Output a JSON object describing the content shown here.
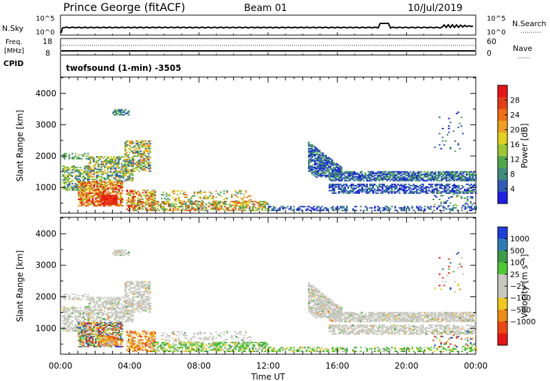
{
  "header": {
    "station": "Prince George (fitACF)",
    "beam": "Beam 01",
    "date": "10/Jul/2019"
  },
  "sky_panel": {
    "left_label": "N.Sky",
    "right_label": "N.Search",
    "left_ticks": [
      "10^5",
      "10^0"
    ],
    "right_ticks": [
      "10^5",
      "10^0"
    ]
  },
  "freq_panel": {
    "left_label_1": "Freq.",
    "left_label_2": "[MHz]",
    "right_label": "Nave",
    "left_ticks": [
      "18",
      "8"
    ],
    "right_ticks": [
      "60",
      "0"
    ]
  },
  "cpid": {
    "label": "CPID",
    "text": "twofsound (1-min) -3505"
  },
  "colors": {
    "power_scale": [
      "#1e1ee6",
      "#2f5cb4",
      "#3f8c7c",
      "#4fa84a",
      "#9bc832",
      "#e1d21e",
      "#f0a01e",
      "#f06e14",
      "#e63c14",
      "#e61414"
    ],
    "velocity_scale": [
      "#e61414",
      "#f04614",
      "#f08c14",
      "#f0c81e",
      "#c8c8c0",
      "#c8c8c0",
      "#50c832",
      "#3c9c46",
      "#2f7cb4",
      "#1e3cdc"
    ]
  },
  "chart_data": [
    {
      "type": "heatmap",
      "name": "power",
      "ylabel": "Slant Range [km]",
      "y_ticks": [
        "1000",
        "2000",
        "3000",
        "4000"
      ],
      "ylim": [
        200,
        4500
      ],
      "xlim_hours": [
        0,
        24
      ],
      "colorbar_label": "Power [dB]",
      "colorbar_ticks": [
        "4",
        "8",
        "12",
        "16",
        "20",
        "24",
        "28"
      ],
      "colorbar_range": [
        0,
        32
      ]
    },
    {
      "type": "heatmap",
      "name": "velocity",
      "ylabel": "Slant Range [km]",
      "y_ticks": [
        "1000",
        "2000",
        "3000",
        "4000"
      ],
      "ylim": [
        200,
        4500
      ],
      "xlim_hours": [
        0,
        24
      ],
      "xlabel": "Time UT",
      "x_ticks": [
        "00:00",
        "04:00",
        "08:00",
        "12:00",
        "16:00",
        "20:00",
        "00:00"
      ],
      "colorbar_label": "Velocity [m s⁻¹]",
      "colorbar_ticks": [
        "1000",
        "500",
        "100",
        "25",
        "−25",
        "−100",
        "−500",
        "−1000"
      ]
    }
  ]
}
